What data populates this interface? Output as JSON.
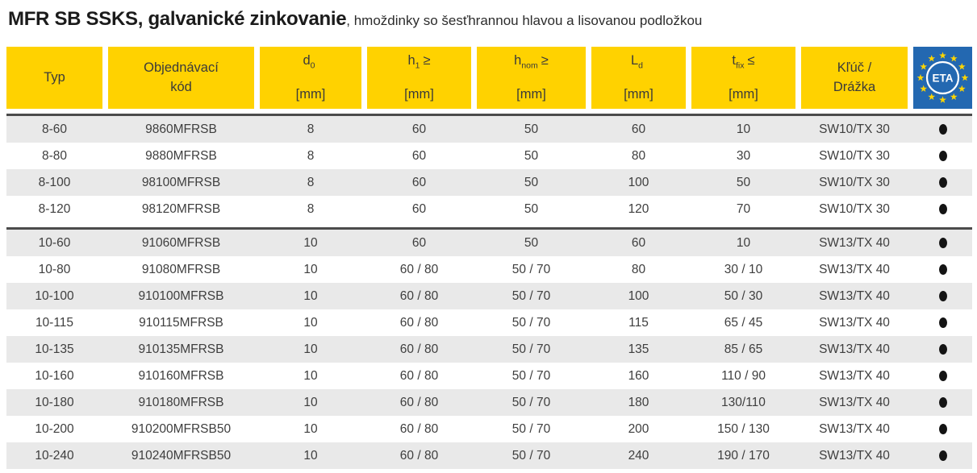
{
  "title": {
    "product": "MFR SB SSKS, galvanické zinkovanie",
    "subtitle": ", hmoždinky so šesťhrannou hlavou a lisovanou podložkou"
  },
  "colors": {
    "header_yellow": "#FFD200",
    "row_shade_gray": "#E9E9E9",
    "separator_dark": "#4B4B4B",
    "eta_blue": "#2368B1",
    "eta_star_yellow": "#FFD500",
    "dot_black": "#141414"
  },
  "table": {
    "row_keys": [
      "typ",
      "kod",
      "d0",
      "h1",
      "hnom",
      "ld",
      "tfix",
      "kluc",
      "eta"
    ],
    "columns": [
      {
        "key": "typ",
        "line1": "Typ",
        "line2": ""
      },
      {
        "key": "kod",
        "line1": "Objednávací",
        "line2": "kód"
      },
      {
        "key": "d0",
        "sym": "d",
        "sub": "0",
        "rel": "",
        "unit": "[mm]"
      },
      {
        "key": "h1",
        "sym": "h",
        "sub": "1",
        "rel": "≥",
        "unit": "[mm]"
      },
      {
        "key": "hnom",
        "sym": "h",
        "sub": "nom",
        "rel": "≥",
        "unit": "[mm]"
      },
      {
        "key": "ld",
        "sym": "L",
        "sub": "d",
        "rel": "",
        "unit": "[mm]"
      },
      {
        "key": "tfix",
        "sym": "t",
        "sub": "fix",
        "rel": "≤",
        "unit": "[mm]"
      },
      {
        "key": "kluc",
        "line1": "Kľúč /",
        "line2": "Drážka"
      },
      {
        "key": "eta",
        "logo_text": "ETA"
      }
    ],
    "groups": [
      {
        "rows": [
          {
            "typ": "8-60",
            "kod": "9860MFRSB",
            "d0": "8",
            "h1": "60",
            "hnom": "50",
            "ld": "60",
            "tfix": "10",
            "kluc": "SW10/TX 30",
            "eta": "●"
          },
          {
            "typ": "8-80",
            "kod": "9880MFRSB",
            "d0": "8",
            "h1": "60",
            "hnom": "50",
            "ld": "80",
            "tfix": "30",
            "kluc": "SW10/TX 30",
            "eta": "●"
          },
          {
            "typ": "8-100",
            "kod": "98100MFRSB",
            "d0": "8",
            "h1": "60",
            "hnom": "50",
            "ld": "100",
            "tfix": "50",
            "kluc": "SW10/TX 30",
            "eta": "●"
          },
          {
            "typ": "8-120",
            "kod": "98120MFRSB",
            "d0": "8",
            "h1": "60",
            "hnom": "50",
            "ld": "120",
            "tfix": "70",
            "kluc": "SW10/TX 30",
            "eta": "●"
          }
        ]
      },
      {
        "rows": [
          {
            "typ": "10-60",
            "kod": "91060MFRSB",
            "d0": "10",
            "h1": "60",
            "hnom": "50",
            "ld": "60",
            "tfix": "10",
            "kluc": "SW13/TX 40",
            "eta": "●"
          },
          {
            "typ": "10-80",
            "kod": "91080MFRSB",
            "d0": "10",
            "h1": "60 / 80",
            "hnom": "50 / 70",
            "ld": "80",
            "tfix": "30 / 10",
            "kluc": "SW13/TX 40",
            "eta": "●"
          },
          {
            "typ": "10-100",
            "kod": "910100MFRSB",
            "d0": "10",
            "h1": "60 / 80",
            "hnom": "50 / 70",
            "ld": "100",
            "tfix": "50 / 30",
            "kluc": "SW13/TX 40",
            "eta": "●"
          },
          {
            "typ": "10-115",
            "kod": "910115MFRSB",
            "d0": "10",
            "h1": "60 / 80",
            "hnom": "50 / 70",
            "ld": "115",
            "tfix": "65 / 45",
            "kluc": "SW13/TX 40",
            "eta": "●"
          },
          {
            "typ": "10-135",
            "kod": "910135MFRSB",
            "d0": "10",
            "h1": "60 / 80",
            "hnom": "50 / 70",
            "ld": "135",
            "tfix": "85 / 65",
            "kluc": "SW13/TX 40",
            "eta": "●"
          },
          {
            "typ": "10-160",
            "kod": "910160MFRSB",
            "d0": "10",
            "h1": "60 / 80",
            "hnom": "50 / 70",
            "ld": "160",
            "tfix": "110 / 90",
            "kluc": "SW13/TX 40",
            "eta": "●"
          },
          {
            "typ": "10-180",
            "kod": "910180MFRSB",
            "d0": "10",
            "h1": "60 / 80",
            "hnom": "50 / 70",
            "ld": "180",
            "tfix": "130/110",
            "kluc": "SW13/TX 40",
            "eta": "●"
          },
          {
            "typ": "10-200",
            "kod": "910200MFRSB50",
            "d0": "10",
            "h1": "60 / 80",
            "hnom": "50 / 70",
            "ld": "200",
            "tfix": "150 / 130",
            "kluc": "SW13/TX 40",
            "eta": "●"
          },
          {
            "typ": "10-240",
            "kod": "910240MFRSB50",
            "d0": "10",
            "h1": "60 / 80",
            "hnom": "50 / 70",
            "ld": "240",
            "tfix": "190 / 170",
            "kluc": "SW13/TX 40",
            "eta": "●"
          }
        ]
      }
    ]
  }
}
